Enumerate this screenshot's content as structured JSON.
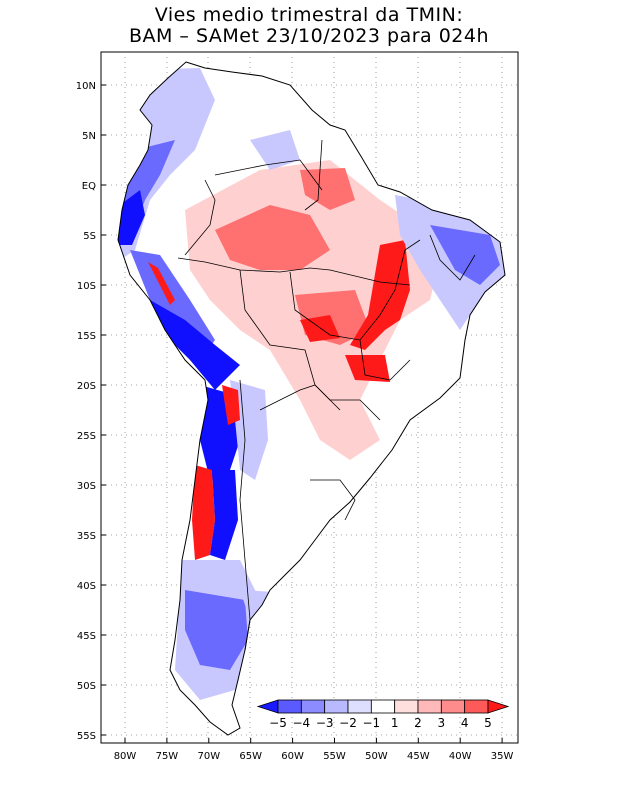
{
  "title": {
    "line1": "Vies medio trimestral da TMIN:",
    "line2": "BAM – SAMet 23/10/2023  para 024h"
  },
  "axes": {
    "x_ticks": [
      "80W",
      "75W",
      "70W",
      "65W",
      "60W",
      "55W",
      "50W",
      "45W",
      "40W",
      "35W"
    ],
    "y_ticks": [
      "10N",
      "5N",
      "EQ",
      "5S",
      "10S",
      "15S",
      "20S",
      "25S",
      "30S",
      "35S",
      "40S",
      "45S",
      "50S",
      "55S"
    ]
  },
  "colorbar": {
    "labels": [
      "−5",
      "−4",
      "−3",
      "−2",
      "−1",
      "1",
      "2",
      "3",
      "4",
      "5"
    ],
    "colors": [
      "#1a1aff",
      "#5a5aff",
      "#8c8cff",
      "#b9b9ff",
      "#dedeff",
      "#ffffff",
      "#ffdede",
      "#ffb9b9",
      "#ff8c8c",
      "#ff5a5a",
      "#ff1a1a"
    ]
  },
  "map_colors": {
    "blue_strong": "#1010ff",
    "blue_mid": "#6a6aff",
    "blue_light": "#c8c8ff",
    "red_strong": "#ff1a1a",
    "red_mid": "#ff7070",
    "red_light": "#ffd0d0",
    "border": "#000000"
  }
}
